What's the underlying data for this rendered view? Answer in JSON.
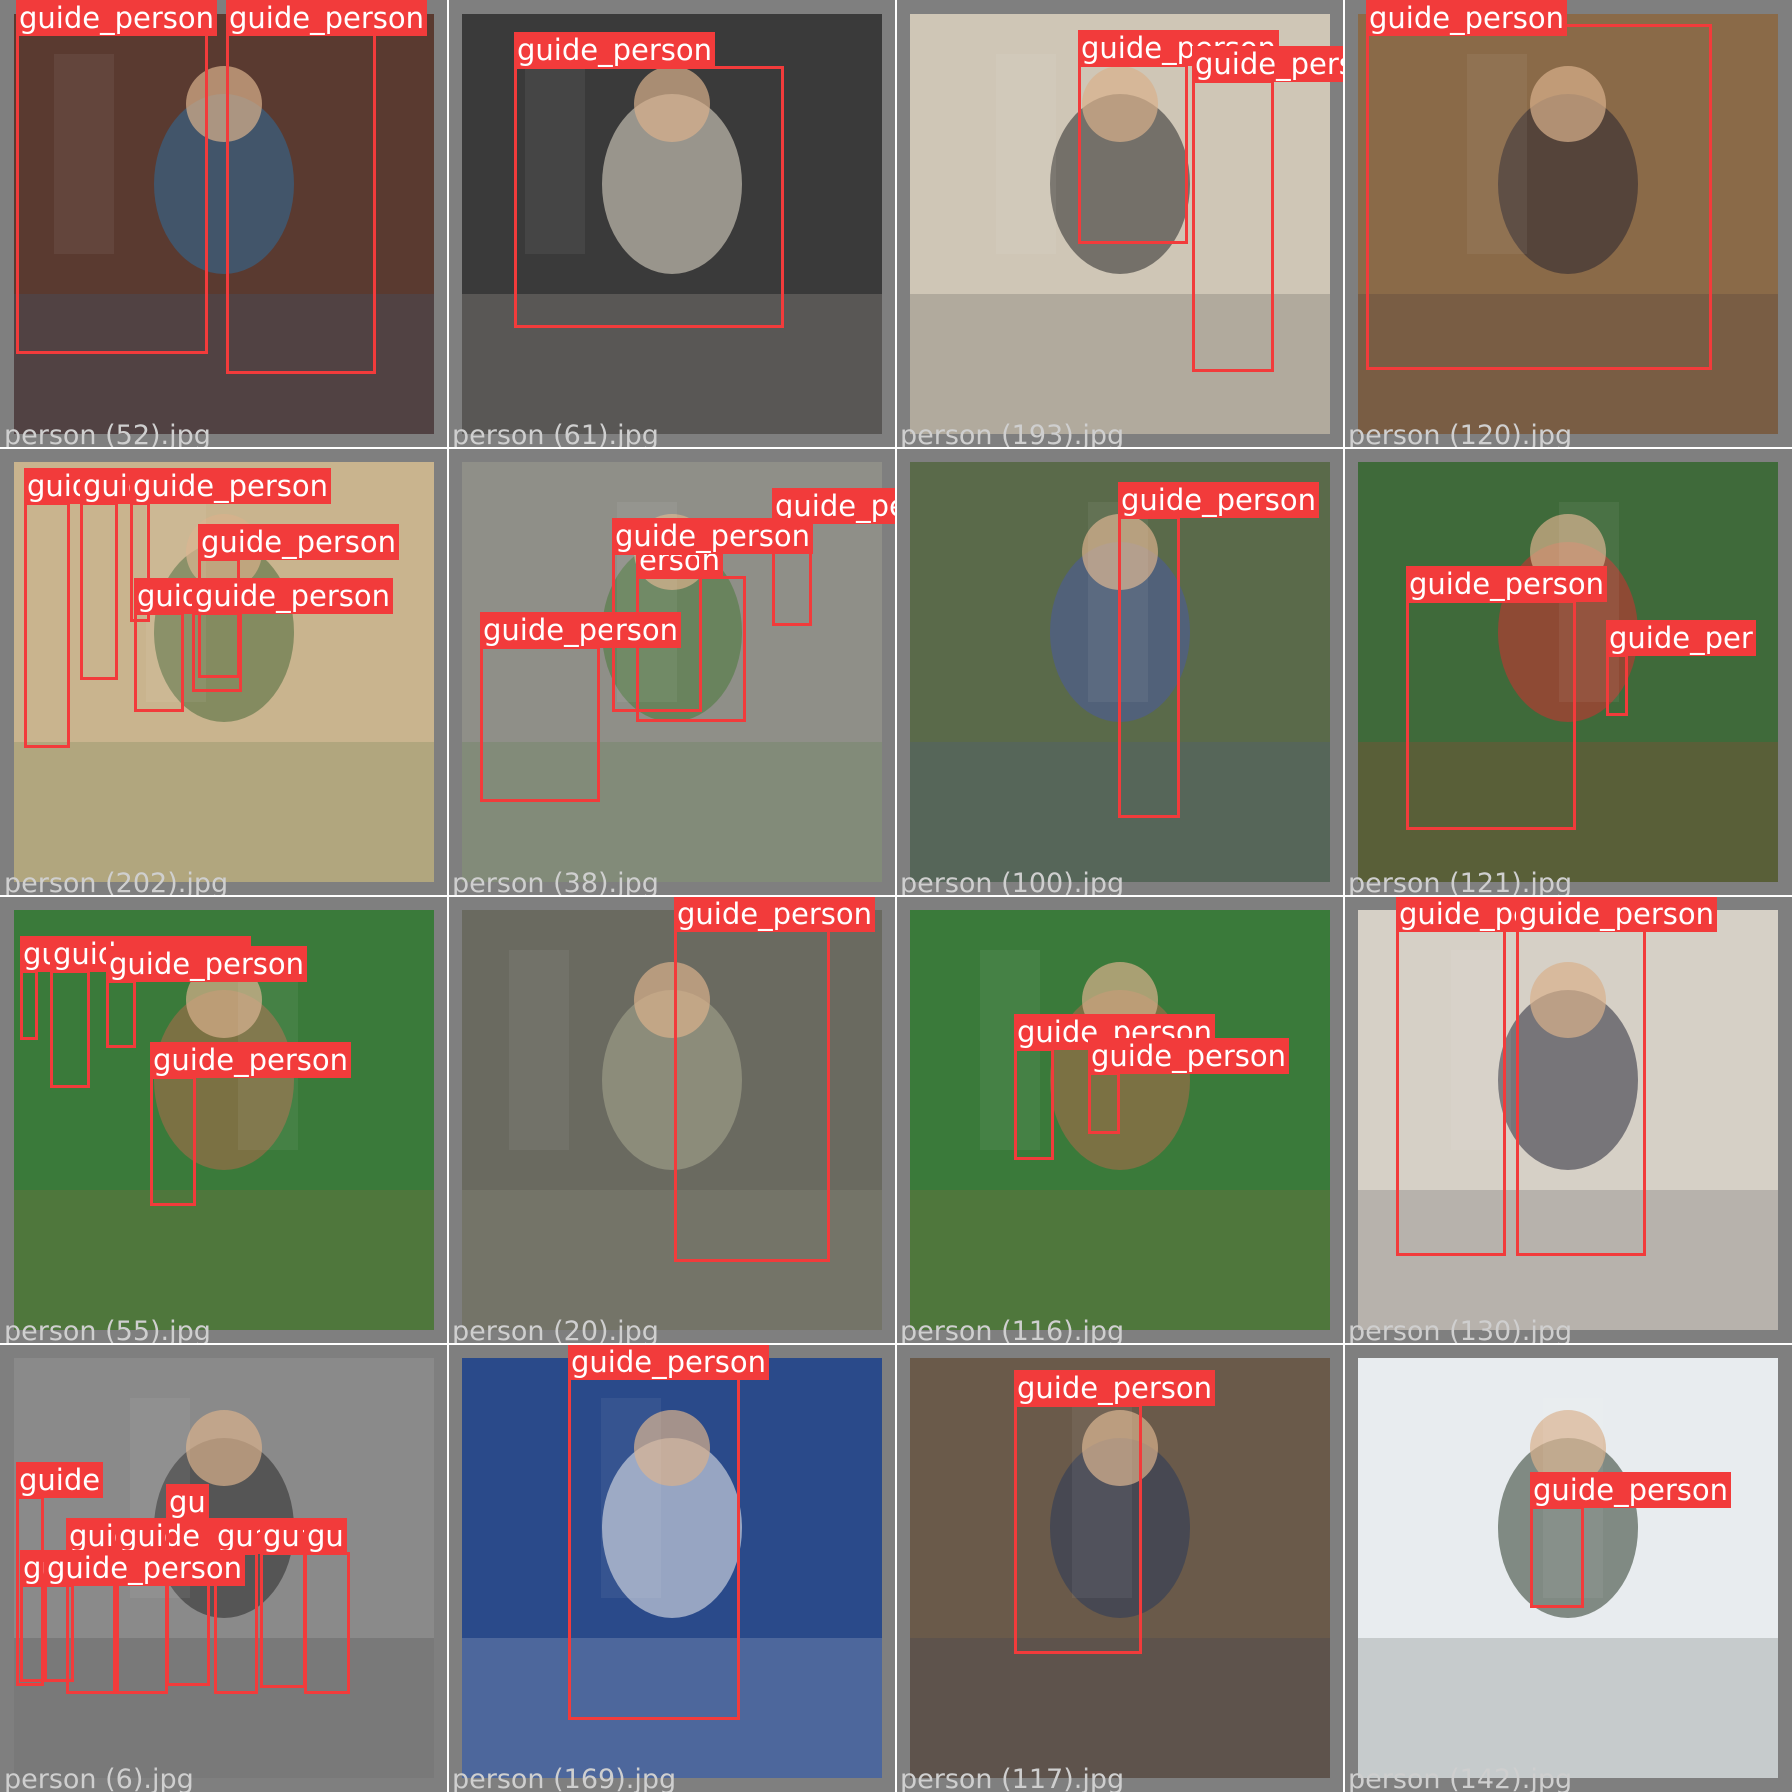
{
  "colors": {
    "box": "#f23b3b",
    "label_text": "#ffffff",
    "background": "#7f7f7f",
    "filename_text": "#cfcfcf"
  },
  "tiles": [
    {
      "filename": "person (52).jpg",
      "detections": [
        {
          "label": "guide_person",
          "bg": "#3b4a5a"
        },
        {
          "label": "guide_person",
          "bg": "#3b4a5a"
        }
      ],
      "scene": {
        "bg": "#5a3a30",
        "fg": "#2f6b9a"
      }
    },
    {
      "filename": "person (61).jpg",
      "detections": [
        {
          "label": "guide_person"
        }
      ],
      "scene": {
        "bg": "#3a3a3a",
        "fg": "#e8e0d0"
      }
    },
    {
      "filename": "person (193).jpg",
      "detections": [
        {
          "label": "guide_person"
        },
        {
          "label": "guide_person"
        }
      ],
      "scene": {
        "bg": "#cfc6b6",
        "fg": "#2a2a2a"
      }
    },
    {
      "filename": "person (120).jpg",
      "detections": [
        {
          "label": "guide_person"
        }
      ],
      "scene": {
        "bg": "#8a6a48",
        "fg": "#2a2530"
      }
    },
    {
      "filename": "person (202).jpg",
      "detections": [
        {
          "label": "guid"
        },
        {
          "label": "guic"
        },
        {
          "label": "guide_person"
        },
        {
          "label": "guide_person"
        },
        {
          "label": "guid"
        },
        {
          "label": "guide_person"
        }
      ],
      "scene": {
        "bg": "#c9b48e",
        "fg": "#4a6a3a"
      }
    },
    {
      "filename": "person (38).jpg",
      "detections": [
        {
          "label": "guide_person"
        },
        {
          "label": "erson"
        },
        {
          "label": "guide_person"
        },
        {
          "label": "guide_person"
        }
      ],
      "scene": {
        "bg": "#8f8f88",
        "fg": "#4a7a3a"
      }
    },
    {
      "filename": "person (100).jpg",
      "detections": [
        {
          "label": "guide_person"
        }
      ],
      "scene": {
        "bg": "#5a6a4a",
        "fg": "#4a5aa0"
      }
    },
    {
      "filename": "person (121).jpg",
      "detections": [
        {
          "label": "guide_person"
        },
        {
          "label": "guide_per"
        }
      ],
      "scene": {
        "bg": "#3f6a3a",
        "fg": "#d03030"
      }
    },
    {
      "filename": "person (55).jpg",
      "detections": [
        {
          "label": "guide_person"
        },
        {
          "label": "guide_person"
        },
        {
          "label": "guide_person"
        },
        {
          "label": "guide_person"
        }
      ],
      "scene": {
        "bg": "#3a7a3a",
        "fg": "#b06a4a"
      }
    },
    {
      "filename": "person (20).jpg",
      "detections": [
        {
          "label": "guide_person"
        }
      ],
      "scene": {
        "bg": "#6a6a60",
        "fg": "#a8a890"
      }
    },
    {
      "filename": "person (116).jpg",
      "detections": [
        {
          "label": "guide_person"
        },
        {
          "label": "guide_person"
        }
      ],
      "scene": {
        "bg": "#3a7a3a",
        "fg": "#b06a4a"
      }
    },
    {
      "filename": "person (130).jpg",
      "detections": [
        {
          "label": "guide_pe"
        },
        {
          "label": "guide_person"
        }
      ],
      "scene": {
        "bg": "#d6d0c6",
        "fg": "#2a2a3a"
      }
    },
    {
      "filename": "person (6).jpg",
      "detections": [
        {
          "label": "guide"
        },
        {
          "label": "guide"
        },
        {
          "label": "guide_person"
        },
        {
          "label": "gu"
        },
        {
          "label": "gu"
        },
        {
          "label": "gu"
        },
        {
          "label": "gu"
        },
        {
          "label": "gui"
        },
        {
          "label": "guide_person"
        }
      ],
      "scene": {
        "bg": "#8a8a8a",
        "fg": "#2a2a2a"
      }
    },
    {
      "filename": "person (169).jpg",
      "detections": [
        {
          "label": "guide_person"
        }
      ],
      "scene": {
        "bg": "#2a4a8a",
        "fg": "#f0f0f0"
      }
    },
    {
      "filename": "person (117).jpg",
      "detections": [
        {
          "label": "guide_person"
        }
      ],
      "scene": {
        "bg": "#6a5a4a",
        "fg": "#2a3a5a"
      }
    },
    {
      "filename": "person (142).jpg",
      "detections": [
        {
          "label": "guide_person"
        }
      ],
      "scene": {
        "bg": "#e8ecef",
        "fg": "#2a3a2a"
      }
    }
  ]
}
